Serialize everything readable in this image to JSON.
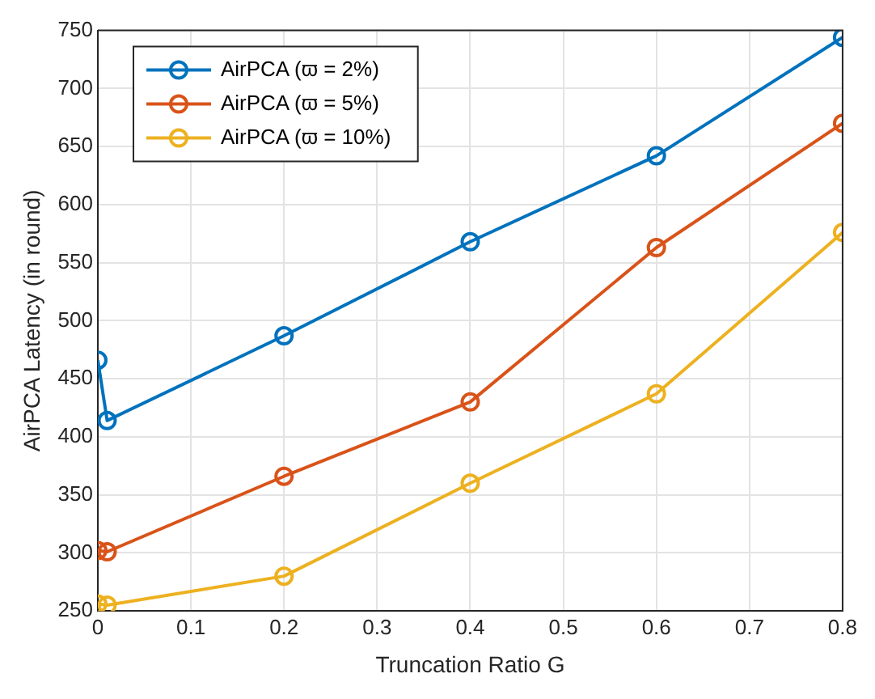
{
  "chart_data": {
    "type": "line",
    "xlabel": "Truncation Ratio G",
    "ylabel": "AirPCA Latency (in round)",
    "x": [
      0,
      0.01,
      0.2,
      0.4,
      0.6,
      0.8
    ],
    "series": [
      {
        "name": "AirPCA (ϖ = 2%)",
        "color": "#0072bd",
        "values": [
          466,
          414,
          487,
          568,
          642,
          744
        ]
      },
      {
        "name": "AirPCA (ϖ = 5%)",
        "color": "#d95319",
        "values": [
          302,
          301,
          366,
          430,
          563,
          670
        ]
      },
      {
        "name": "AirPCA (ϖ = 10%)",
        "color": "#edb120",
        "values": [
          256,
          255,
          280,
          360,
          437,
          576
        ]
      }
    ],
    "xlim": [
      0,
      0.8
    ],
    "xticks": [
      0,
      0.1,
      0.2,
      0.3,
      0.4,
      0.5,
      0.6,
      0.7,
      0.8
    ],
    "ylim": [
      250,
      750
    ],
    "yticks": [
      250,
      300,
      350,
      400,
      450,
      500,
      550,
      600,
      650,
      700,
      750
    ],
    "grid": true,
    "legend": "top left",
    "marker": "circle",
    "line_style": "solid"
  }
}
